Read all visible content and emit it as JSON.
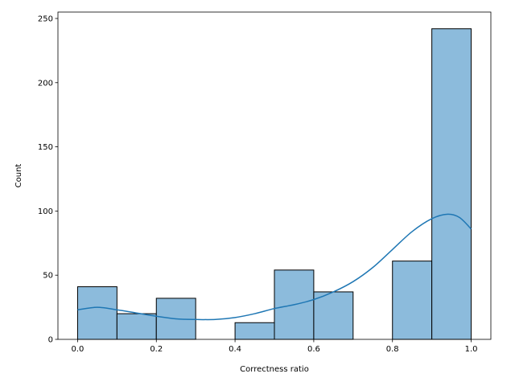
{
  "chart_data": {
    "type": "histogram",
    "title": "",
    "xlabel": "Correctness ratio",
    "ylabel": "Count",
    "xlim": [
      -0.05,
      1.05
    ],
    "ylim": [
      0,
      255
    ],
    "xticks": [
      0.0,
      0.2,
      0.4,
      0.6,
      0.8,
      1.0
    ],
    "xtick_labels": [
      "0.0",
      "0.2",
      "0.4",
      "0.6",
      "0.8",
      "1.0"
    ],
    "yticks": [
      0,
      50,
      100,
      150,
      200,
      250
    ],
    "ytick_labels": [
      "0",
      "50",
      "100",
      "150",
      "200",
      "250"
    ],
    "bins": [
      {
        "x0": 0.0,
        "x1": 0.1,
        "count": 41
      },
      {
        "x0": 0.1,
        "x1": 0.2,
        "count": 20
      },
      {
        "x0": 0.2,
        "x1": 0.3,
        "count": 32
      },
      {
        "x0": 0.3,
        "x1": 0.4,
        "count": 0
      },
      {
        "x0": 0.4,
        "x1": 0.5,
        "count": 13
      },
      {
        "x0": 0.5,
        "x1": 0.6,
        "count": 54
      },
      {
        "x0": 0.6,
        "x1": 0.7,
        "count": 37
      },
      {
        "x0": 0.7,
        "x1": 0.8,
        "count": 0
      },
      {
        "x0": 0.8,
        "x1": 0.9,
        "count": 61
      },
      {
        "x0": 0.9,
        "x1": 1.0,
        "count": 242
      }
    ],
    "kde": {
      "x": [
        0.0,
        0.05,
        0.1,
        0.15,
        0.2,
        0.25,
        0.3,
        0.35,
        0.4,
        0.45,
        0.5,
        0.55,
        0.6,
        0.65,
        0.7,
        0.75,
        0.8,
        0.85,
        0.9,
        0.94,
        0.97,
        1.0
      ],
      "y": [
        23,
        25,
        23,
        20.5,
        18,
        16,
        15.5,
        15.5,
        17,
        20,
        24,
        27,
        31,
        37,
        45,
        56,
        70,
        84,
        94,
        97.5,
        95,
        86
      ]
    },
    "colors": {
      "bar_fill": "#8cbbdc",
      "bar_edge": "#000000",
      "kde_line": "#1f77b4"
    },
    "grid": false,
    "legend": "none"
  }
}
